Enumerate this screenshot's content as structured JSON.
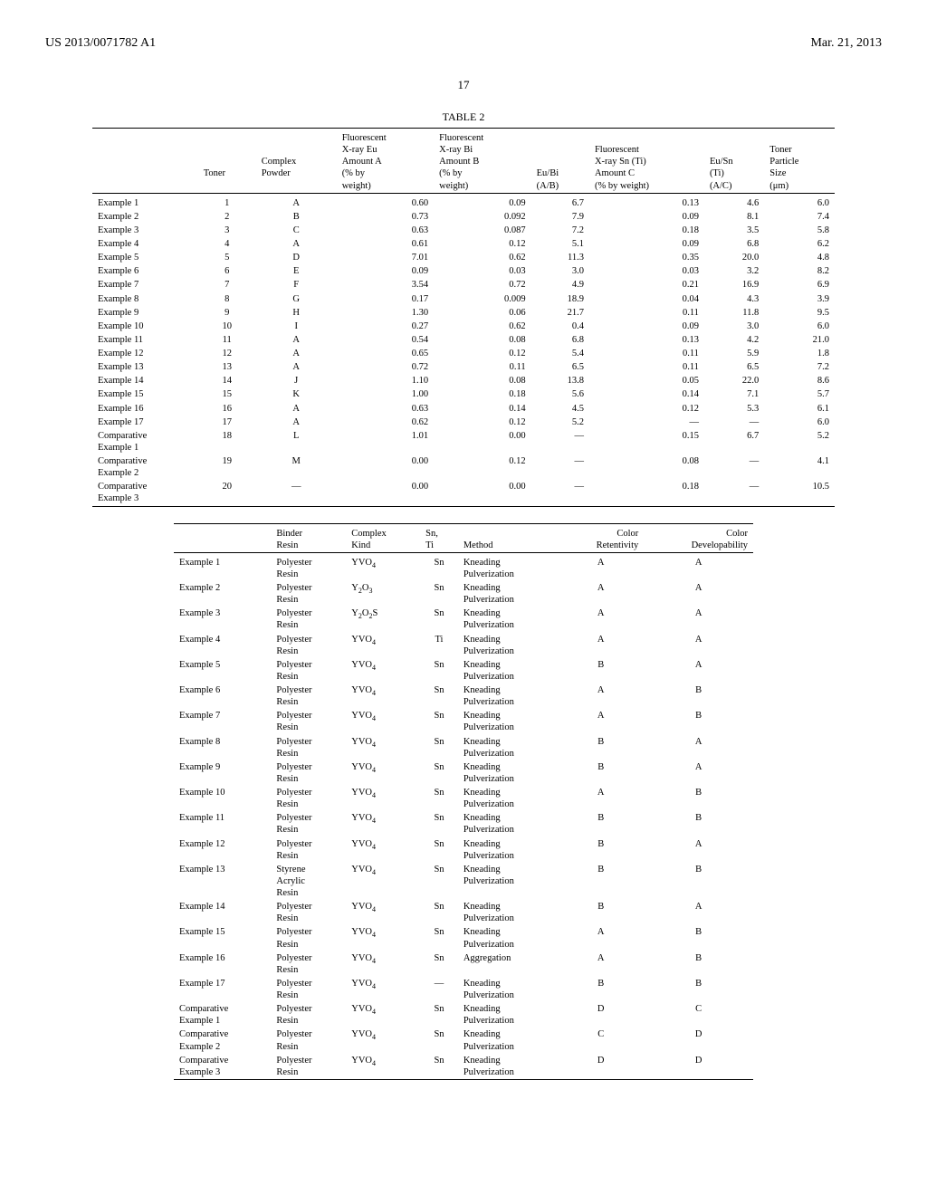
{
  "header": {
    "left": "US 2013/0071782 A1",
    "right": "Mar. 21, 2013"
  },
  "page_number": "17",
  "table_title": "TABLE 2",
  "t1": {
    "headers": {
      "col0": "",
      "col1": "Toner",
      "col2": "Complex Powder",
      "col3": "Fluorescent X-ray Eu Amount A (% by weight)",
      "col4": "Fluorescent X-ray Bi Amount B (% by weight)",
      "col5": "Eu/Bi (A/B)",
      "col6": "Fluorescent X-ray Sn (Ti) Amount C (% by weight)",
      "col7": "Eu/Sn (Ti) (A/C)",
      "col8": "Toner Particle Size (μm)"
    },
    "rows": [
      [
        "Example 1",
        "1",
        "A",
        "0.60",
        "0.09",
        "6.7",
        "0.13",
        "4.6",
        "6.0"
      ],
      [
        "Example 2",
        "2",
        "B",
        "0.73",
        "0.092",
        "7.9",
        "0.09",
        "8.1",
        "7.4"
      ],
      [
        "Example 3",
        "3",
        "C",
        "0.63",
        "0.087",
        "7.2",
        "0.18",
        "3.5",
        "5.8"
      ],
      [
        "Example 4",
        "4",
        "A",
        "0.61",
        "0.12",
        "5.1",
        "0.09",
        "6.8",
        "6.2"
      ],
      [
        "Example 5",
        "5",
        "D",
        "7.01",
        "0.62",
        "11.3",
        "0.35",
        "20.0",
        "4.8"
      ],
      [
        "Example 6",
        "6",
        "E",
        "0.09",
        "0.03",
        "3.0",
        "0.03",
        "3.2",
        "8.2"
      ],
      [
        "Example 7",
        "7",
        "F",
        "3.54",
        "0.72",
        "4.9",
        "0.21",
        "16.9",
        "6.9"
      ],
      [
        "Example 8",
        "8",
        "G",
        "0.17",
        "0.009",
        "18.9",
        "0.04",
        "4.3",
        "3.9"
      ],
      [
        "Example 9",
        "9",
        "H",
        "1.30",
        "0.06",
        "21.7",
        "0.11",
        "11.8",
        "9.5"
      ],
      [
        "Example 10",
        "10",
        "I",
        "0.27",
        "0.62",
        "0.4",
        "0.09",
        "3.0",
        "6.0"
      ],
      [
        "Example 11",
        "11",
        "A",
        "0.54",
        "0.08",
        "6.8",
        "0.13",
        "4.2",
        "21.0"
      ],
      [
        "Example 12",
        "12",
        "A",
        "0.65",
        "0.12",
        "5.4",
        "0.11",
        "5.9",
        "1.8"
      ],
      [
        "Example 13",
        "13",
        "A",
        "0.72",
        "0.11",
        "6.5",
        "0.11",
        "6.5",
        "7.2"
      ],
      [
        "Example 14",
        "14",
        "J",
        "1.10",
        "0.08",
        "13.8",
        "0.05",
        "22.0",
        "8.6"
      ],
      [
        "Example 15",
        "15",
        "K",
        "1.00",
        "0.18",
        "5.6",
        "0.14",
        "7.1",
        "5.7"
      ],
      [
        "Example 16",
        "16",
        "A",
        "0.63",
        "0.14",
        "4.5",
        "0.12",
        "5.3",
        "6.1"
      ],
      [
        "Example 17",
        "17",
        "A",
        "0.62",
        "0.12",
        "5.2",
        "—",
        "—",
        "6.0"
      ],
      [
        "Comparative Example 1",
        "18",
        "L",
        "1.01",
        "0.00",
        "—",
        "0.15",
        "6.7",
        "5.2"
      ],
      [
        "Comparative Example 2",
        "19",
        "M",
        "0.00",
        "0.12",
        "—",
        "0.08",
        "—",
        "4.1"
      ],
      [
        "Comparative Example 3",
        "20",
        "—",
        "0.00",
        "0.00",
        "—",
        "0.18",
        "—",
        "10.5"
      ]
    ]
  },
  "t2": {
    "headers": {
      "col0": "",
      "col1": "Binder Resin",
      "col2": "Complex Kind",
      "col3": "Sn, Ti",
      "col4": "Method",
      "col5": "Color Retentivity",
      "col6": "Color Developability"
    },
    "rows": [
      [
        "Example 1",
        "Polyester Resin",
        "YVO4",
        "Sn",
        "Kneading Pulverization",
        "A",
        "A"
      ],
      [
        "Example 2",
        "Polyester Resin",
        "Y2O3",
        "Sn",
        "Kneading Pulverization",
        "A",
        "A"
      ],
      [
        "Example 3",
        "Polyester Resin",
        "Y2O2S",
        "Sn",
        "Kneading Pulverization",
        "A",
        "A"
      ],
      [
        "Example 4",
        "Polyester Resin",
        "YVO4",
        "Ti",
        "Kneading Pulverization",
        "A",
        "A"
      ],
      [
        "Example 5",
        "Polyester Resin",
        "YVO4",
        "Sn",
        "Kneading Pulverization",
        "B",
        "A"
      ],
      [
        "Example 6",
        "Polyester Resin",
        "YVO4",
        "Sn",
        "Kneading Pulverization",
        "A",
        "B"
      ],
      [
        "Example 7",
        "Polyester Resin",
        "YVO4",
        "Sn",
        "Kneading Pulverization",
        "A",
        "B"
      ],
      [
        "Example 8",
        "Polyester Resin",
        "YVO4",
        "Sn",
        "Kneading Pulverization",
        "B",
        "A"
      ],
      [
        "Example 9",
        "Polyester Resin",
        "YVO4",
        "Sn",
        "Kneading Pulverization",
        "B",
        "A"
      ],
      [
        "Example 10",
        "Polyester Resin",
        "YVO4",
        "Sn",
        "Kneading Pulverization",
        "A",
        "B"
      ],
      [
        "Example 11",
        "Polyester Resin",
        "YVO4",
        "Sn",
        "Kneading Pulverization",
        "B",
        "B"
      ],
      [
        "Example 12",
        "Polyester Resin",
        "YVO4",
        "Sn",
        "Kneading Pulverization",
        "B",
        "A"
      ],
      [
        "Example 13",
        "Styrene Acrylic Resin",
        "YVO4",
        "Sn",
        "Kneading Pulverization",
        "B",
        "B"
      ],
      [
        "Example 14",
        "Polyester Resin",
        "YVO4",
        "Sn",
        "Kneading Pulverization",
        "B",
        "A"
      ],
      [
        "Example 15",
        "Polyester Resin",
        "YVO4",
        "Sn",
        "Kneading Pulverization",
        "A",
        "B"
      ],
      [
        "Example 16",
        "Polyester Resin",
        "YVO4",
        "Sn",
        "Aggregation",
        "A",
        "B"
      ],
      [
        "Example 17",
        "Polyester Resin",
        "YVO4",
        "—",
        "Kneading Pulverization",
        "B",
        "B"
      ],
      [
        "Comparative Example 1",
        "Polyester Resin",
        "YVO4",
        "Sn",
        "Kneading Pulverization",
        "D",
        "C"
      ],
      [
        "Comparative Example 2",
        "Polyester Resin",
        "YVO4",
        "Sn",
        "Kneading Pulverization",
        "C",
        "D"
      ],
      [
        "Comparative Example 3",
        "Polyester Resin",
        "YVO4",
        "Sn",
        "Kneading Pulverization",
        "D",
        "D"
      ]
    ]
  }
}
